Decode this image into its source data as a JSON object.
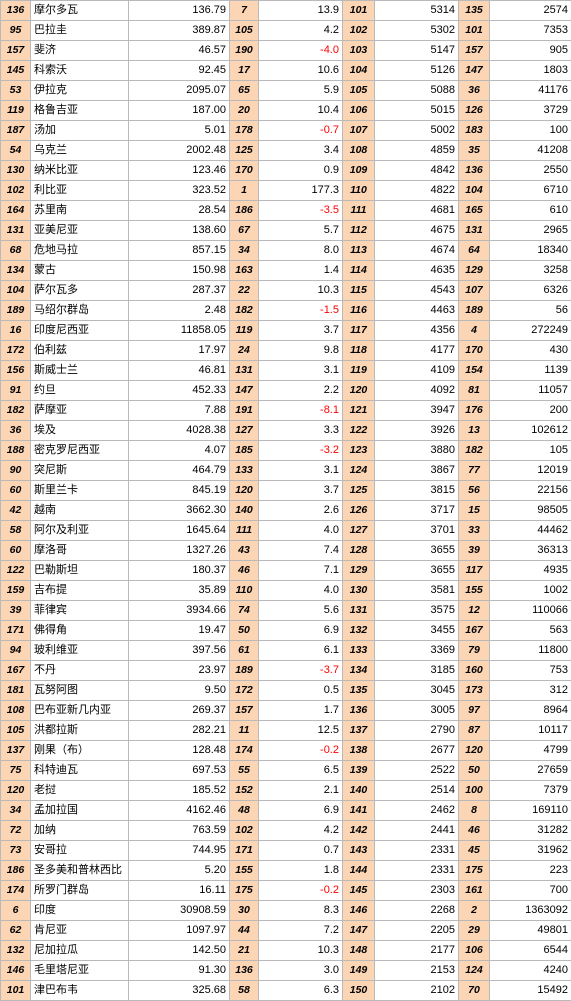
{
  "table": {
    "columns": [
      "rank_a",
      "country",
      "value_a",
      "rank_b",
      "value_b",
      "rank_c",
      "value_c",
      "rank_d",
      "value_d"
    ],
    "rows": [
      [
        "136",
        "摩尔多瓦",
        "136.79",
        "7",
        "13.9",
        "101",
        "5314",
        "135",
        "2574"
      ],
      [
        "95",
        "巴拉圭",
        "389.87",
        "105",
        "4.2",
        "102",
        "5302",
        "101",
        "7353"
      ],
      [
        "157",
        "斐济",
        "46.57",
        "190",
        "-4.0",
        "103",
        "5147",
        "157",
        "905"
      ],
      [
        "145",
        "科索沃",
        "92.45",
        "17",
        "10.6",
        "104",
        "5126",
        "147",
        "1803"
      ],
      [
        "53",
        "伊拉克",
        "2095.07",
        "65",
        "5.9",
        "105",
        "5088",
        "36",
        "41176"
      ],
      [
        "119",
        "格鲁吉亚",
        "187.00",
        "20",
        "10.4",
        "106",
        "5015",
        "126",
        "3729"
      ],
      [
        "187",
        "汤加",
        "5.01",
        "178",
        "-0.7",
        "107",
        "5002",
        "183",
        "100"
      ],
      [
        "54",
        "乌克兰",
        "2002.48",
        "125",
        "3.4",
        "108",
        "4859",
        "35",
        "41208"
      ],
      [
        "130",
        "纳米比亚",
        "123.46",
        "170",
        "0.9",
        "109",
        "4842",
        "136",
        "2550"
      ],
      [
        "102",
        "利比亚",
        "323.52",
        "1",
        "177.3",
        "110",
        "4822",
        "104",
        "6710"
      ],
      [
        "164",
        "苏里南",
        "28.54",
        "186",
        "-3.5",
        "111",
        "4681",
        "165",
        "610"
      ],
      [
        "131",
        "亚美尼亚",
        "138.60",
        "67",
        "5.7",
        "112",
        "4675",
        "131",
        "2965"
      ],
      [
        "68",
        "危地马拉",
        "857.15",
        "34",
        "8.0",
        "113",
        "4674",
        "64",
        "18340"
      ],
      [
        "134",
        "蒙古",
        "150.98",
        "163",
        "1.4",
        "114",
        "4635",
        "129",
        "3258"
      ],
      [
        "104",
        "萨尔瓦多",
        "287.37",
        "22",
        "10.3",
        "115",
        "4543",
        "107",
        "6326"
      ],
      [
        "189",
        "马绍尔群岛",
        "2.48",
        "182",
        "-1.5",
        "116",
        "4463",
        "189",
        "56"
      ],
      [
        "16",
        "印度尼西亚",
        "11858.05",
        "119",
        "3.7",
        "117",
        "4356",
        "4",
        "272249"
      ],
      [
        "172",
        "伯利兹",
        "17.97",
        "24",
        "9.8",
        "118",
        "4177",
        "170",
        "430"
      ],
      [
        "156",
        "斯威士兰",
        "46.81",
        "131",
        "3.1",
        "119",
        "4109",
        "154",
        "1139"
      ],
      [
        "91",
        "约旦",
        "452.33",
        "147",
        "2.2",
        "120",
        "4092",
        "81",
        "11057"
      ],
      [
        "182",
        "萨摩亚",
        "7.88",
        "191",
        "-8.1",
        "121",
        "3947",
        "176",
        "200"
      ],
      [
        "36",
        "埃及",
        "4028.38",
        "127",
        "3.3",
        "122",
        "3926",
        "13",
        "102612"
      ],
      [
        "188",
        "密克罗尼西亚",
        "4.07",
        "185",
        "-3.2",
        "123",
        "3880",
        "182",
        "105"
      ],
      [
        "90",
        "突尼斯",
        "464.79",
        "133",
        "3.1",
        "124",
        "3867",
        "77",
        "12019"
      ],
      [
        "60",
        "斯里兰卡",
        "845.19",
        "120",
        "3.7",
        "125",
        "3815",
        "56",
        "22156"
      ],
      [
        "42",
        "越南",
        "3662.30",
        "140",
        "2.6",
        "126",
        "3717",
        "15",
        "98505"
      ],
      [
        "58",
        "阿尔及利亚",
        "1645.64",
        "111",
        "4.0",
        "127",
        "3701",
        "33",
        "44462"
      ],
      [
        "60",
        "摩洛哥",
        "1327.26",
        "43",
        "7.4",
        "128",
        "3655",
        "39",
        "36313"
      ],
      [
        "122",
        "巴勒斯坦",
        "180.37",
        "46",
        "7.1",
        "129",
        "3655",
        "117",
        "4935"
      ],
      [
        "159",
        "吉布提",
        "35.89",
        "110",
        "4.0",
        "130",
        "3581",
        "155",
        "1002"
      ],
      [
        "39",
        "菲律宾",
        "3934.66",
        "74",
        "5.6",
        "131",
        "3575",
        "12",
        "110066"
      ],
      [
        "171",
        "佛得角",
        "19.47",
        "50",
        "6.9",
        "132",
        "3455",
        "167",
        "563"
      ],
      [
        "94",
        "玻利维亚",
        "397.56",
        "61",
        "6.1",
        "133",
        "3369",
        "79",
        "11800"
      ],
      [
        "167",
        "不丹",
        "23.97",
        "189",
        "-3.7",
        "134",
        "3185",
        "160",
        "753"
      ],
      [
        "181",
        "瓦努阿图",
        "9.50",
        "172",
        "0.5",
        "135",
        "3045",
        "173",
        "312"
      ],
      [
        "108",
        "巴布亚新几内亚",
        "269.37",
        "157",
        "1.7",
        "136",
        "3005",
        "97",
        "8964"
      ],
      [
        "105",
        "洪都拉斯",
        "282.21",
        "11",
        "12.5",
        "137",
        "2790",
        "87",
        "10117"
      ],
      [
        "137",
        "刚果（布）",
        "128.48",
        "174",
        "-0.2",
        "138",
        "2677",
        "120",
        "4799"
      ],
      [
        "75",
        "科特迪瓦",
        "697.53",
        "55",
        "6.5",
        "139",
        "2522",
        "50",
        "27659"
      ],
      [
        "120",
        "老挝",
        "185.52",
        "152",
        "2.1",
        "140",
        "2514",
        "100",
        "7379"
      ],
      [
        "34",
        "孟加拉国",
        "4162.46",
        "48",
        "6.9",
        "141",
        "2462",
        "8",
        "169110"
      ],
      [
        "72",
        "加纳",
        "763.59",
        "102",
        "4.2",
        "142",
        "2441",
        "46",
        "31282"
      ],
      [
        "73",
        "安哥拉",
        "744.95",
        "171",
        "0.7",
        "143",
        "2331",
        "45",
        "31962"
      ],
      [
        "186",
        "圣多美和普林西比",
        "5.20",
        "155",
        "1.8",
        "144",
        "2331",
        "175",
        "223"
      ],
      [
        "174",
        "所罗门群岛",
        "16.11",
        "175",
        "-0.2",
        "145",
        "2303",
        "161",
        "700"
      ],
      [
        "6",
        "印度",
        "30908.59",
        "30",
        "8.3",
        "146",
        "2268",
        "2",
        "1363092"
      ],
      [
        "62",
        "肯尼亚",
        "1097.97",
        "44",
        "7.2",
        "147",
        "2205",
        "29",
        "49801"
      ],
      [
        "132",
        "尼加拉瓜",
        "142.50",
        "21",
        "10.3",
        "148",
        "2177",
        "106",
        "6544"
      ],
      [
        "146",
        "毛里塔尼亚",
        "91.30",
        "136",
        "3.0",
        "149",
        "2153",
        "124",
        "4240"
      ],
      [
        "101",
        "津巴布韦",
        "325.68",
        "58",
        "6.3",
        "150",
        "2102",
        "70",
        "15492"
      ]
    ]
  },
  "colors": {
    "rank_fill": "#fcd5b4",
    "grid": "#b9b9b9",
    "negative_text": "#ff0000"
  }
}
